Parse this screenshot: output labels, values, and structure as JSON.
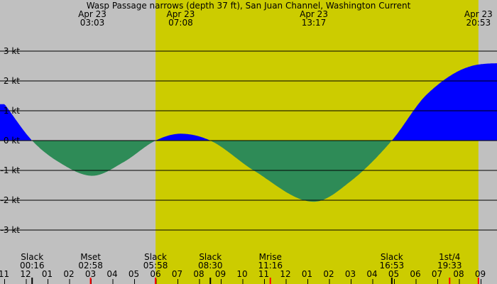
{
  "chart_data": {
    "type": "area",
    "title": "Wasp Passage narrows (depth 37 ft), San Juan Channel, Washington Current",
    "xlabel": "",
    "ylabel": "",
    "ylim": [
      -3.75,
      3.75
    ],
    "xlim_hours": [
      -1.0,
      33.3
    ],
    "grid": true,
    "colors": {
      "background": "#c0c0c0",
      "daylight": "#cccc00",
      "flood": "#0000ff",
      "ebb": "#2e8b57",
      "grid": "#000000",
      "moon_tick": "#ff0000"
    },
    "daylight_hours": [
      5.97,
      20.88
    ],
    "y_ticks": [
      {
        "value": 3,
        "label": "3 kt"
      },
      {
        "value": 2,
        "label": "2 kt"
      },
      {
        "value": 1,
        "label": "1 kt"
      },
      {
        "value": 0,
        "label": "0 kt"
      },
      {
        "value": -1,
        "label": "-1 kt"
      },
      {
        "value": -2,
        "label": "-2 kt"
      },
      {
        "value": -3,
        "label": "-3 kt"
      }
    ],
    "hour_ticks": [
      {
        "h": -1,
        "label": "11"
      },
      {
        "h": 0,
        "label": "12"
      },
      {
        "h": 1,
        "label": "01"
      },
      {
        "h": 2,
        "label": "02"
      },
      {
        "h": 3,
        "label": "03"
      },
      {
        "h": 4,
        "label": "04"
      },
      {
        "h": 5,
        "label": "05"
      },
      {
        "h": 6,
        "label": "06"
      },
      {
        "h": 7,
        "label": "07"
      },
      {
        "h": 8,
        "label": "08"
      },
      {
        "h": 9,
        "label": "09"
      },
      {
        "h": 10,
        "label": "10"
      },
      {
        "h": 11,
        "label": "11"
      },
      {
        "h": 12,
        "label": "12"
      },
      {
        "h": 13,
        "label": "01"
      },
      {
        "h": 14,
        "label": "02"
      },
      {
        "h": 15,
        "label": "03"
      },
      {
        "h": 16,
        "label": "04"
      },
      {
        "h": 17,
        "label": "05"
      },
      {
        "h": 18,
        "label": "06"
      },
      {
        "h": 19,
        "label": "07"
      },
      {
        "h": 20,
        "label": "08"
      },
      {
        "h": 21,
        "label": "09"
      }
    ],
    "top_events": [
      {
        "h": 3.05,
        "date": "Apr 23",
        "time": "03:03"
      },
      {
        "h": 7.13,
        "date": "Apr 23",
        "time": "07:08"
      },
      {
        "h": 13.28,
        "date": "Apr 23",
        "time": "13:17"
      },
      {
        "h": 20.88,
        "date": "Apr 23",
        "time": "20:53"
      }
    ],
    "bottom_events": [
      {
        "h": 0.27,
        "name": "Slack",
        "time": "00:16"
      },
      {
        "h": 2.97,
        "name": "Mset",
        "time": "02:58"
      },
      {
        "h": 5.97,
        "name": "Slack",
        "time": "05:58"
      },
      {
        "h": 8.5,
        "name": "Slack",
        "time": "08:30"
      },
      {
        "h": 11.27,
        "name": "Mrise",
        "time": "11:16"
      },
      {
        "h": 16.88,
        "name": "Slack",
        "time": "16:53"
      },
      {
        "h": 19.55,
        "name": "1st/4",
        "time": "19:33"
      }
    ],
    "series": [
      {
        "points": [
          [
            -1.0,
            1.22
          ],
          [
            0.27,
            0.0
          ],
          [
            1.5,
            -0.72
          ],
          [
            3.05,
            -1.18
          ],
          [
            4.5,
            -0.72
          ],
          [
            5.97,
            0.0
          ],
          [
            7.13,
            0.23
          ],
          [
            8.5,
            0.0
          ],
          [
            10.5,
            -1.0
          ],
          [
            13.28,
            -2.05
          ],
          [
            15.0,
            -1.35
          ],
          [
            16.88,
            0.0
          ],
          [
            18.5,
            1.55
          ],
          [
            20.88,
            2.55
          ],
          [
            22.3,
            2.6
          ]
        ]
      }
    ]
  }
}
